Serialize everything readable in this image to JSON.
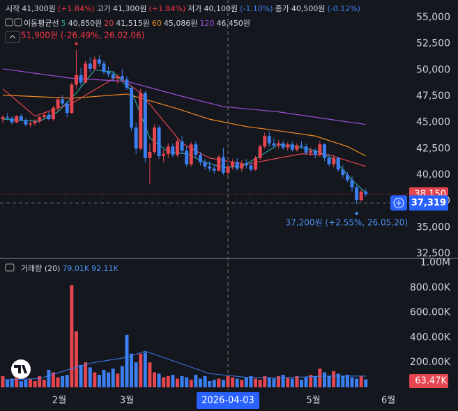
{
  "header": {
    "items": [
      {
        "label": "시작",
        "value": "41,300원",
        "change": "(+1.84%)",
        "color": "#f23645"
      },
      {
        "label": "고가",
        "value": "41,300원",
        "change": "(+1.84%)",
        "color": "#f23645"
      },
      {
        "label": "저가",
        "value": "40,100원",
        "change": "(-1.10%)",
        "color": "#3b82f0"
      },
      {
        "label": "종가",
        "value": "40,500원",
        "change": "(-0.12%)",
        "color": "#3b82f0"
      }
    ],
    "ma_title": "이동평균선",
    "volume_title": "거래량 (20)",
    "volume_values": [
      "79.01K",
      "92.11K"
    ]
  },
  "chart_data": {
    "type": "candlestick",
    "up_color": "#e5454f",
    "down_color": "#3b7ff0",
    "xlim": [
      -0.6,
      89.5
    ],
    "xticks": [
      {
        "value": 12.3,
        "label": "2월"
      },
      {
        "value": 27,
        "label": "3월"
      },
      {
        "value": 67.6,
        "label": "5월"
      },
      {
        "value": 83.9,
        "label": "6월"
      }
    ],
    "crosshair_x": {
      "value": 49,
      "label": "2026-04-03"
    },
    "ylim": [
      32100,
      56660
    ],
    "yticks": [
      {
        "value": 32500,
        "label": "32,500"
      },
      {
        "value": 35000,
        "label": "35,000"
      },
      {
        "value": 37500,
        "label": "37,500"
      },
      {
        "value": 40000,
        "label": "40,000"
      },
      {
        "value": 42500,
        "label": "42,500"
      },
      {
        "value": 45000,
        "label": "45,000"
      },
      {
        "value": 47500,
        "label": "47,500"
      },
      {
        "value": 50000,
        "label": "50,000"
      },
      {
        "value": 52500,
        "label": "52,500"
      },
      {
        "value": 55000,
        "label": "55,000"
      }
    ],
    "volume_ylim": [
      0,
      1028000
    ],
    "volume_yticks": [
      {
        "value": 200000,
        "label": "200.00K"
      },
      {
        "value": 400000,
        "label": "400.00K"
      },
      {
        "value": 600000,
        "label": "600.00K"
      },
      {
        "value": 800000,
        "label": "800.00K"
      },
      {
        "value": 1000000,
        "label": "1.00M"
      }
    ],
    "last_price": {
      "value": 38150,
      "label": "38,150"
    },
    "crosshair_price": {
      "value": 37319,
      "label": "37,319"
    },
    "last_volume": {
      "value": 63470,
      "label": "63.47K"
    },
    "annotations": [
      {
        "text": "51,900원 (-26.49%, 26.02.06)",
        "x": 16,
        "value": 51900,
        "color": "#f23645"
      },
      {
        "text": "37,200원 (+2.55%, 26.05.20)",
        "x": 77,
        "value": 37200,
        "color": "#4a90f0"
      }
    ],
    "candles": [
      {
        "o": 45300,
        "h": 45700,
        "l": 44900,
        "c": 45500,
        "v": 90000
      },
      {
        "o": 45500,
        "h": 45900,
        "l": 45200,
        "c": 45400,
        "v": 60000
      },
      {
        "o": 45400,
        "h": 45600,
        "l": 44800,
        "c": 45000,
        "v": 70000
      },
      {
        "o": 45000,
        "h": 45700,
        "l": 44900,
        "c": 45600,
        "v": 80000
      },
      {
        "o": 45600,
        "h": 45800,
        "l": 45100,
        "c": 45200,
        "v": 50000
      },
      {
        "o": 45200,
        "h": 45400,
        "l": 44600,
        "c": 44800,
        "v": 60000
      },
      {
        "o": 44800,
        "h": 45100,
        "l": 44500,
        "c": 44900,
        "v": 70000
      },
      {
        "o": 44900,
        "h": 45300,
        "l": 44700,
        "c": 45100,
        "v": 50000
      },
      {
        "o": 45100,
        "h": 45600,
        "l": 44900,
        "c": 45500,
        "v": 90000
      },
      {
        "o": 45500,
        "h": 46000,
        "l": 45300,
        "c": 45700,
        "v": 60000
      },
      {
        "o": 45700,
        "h": 46000,
        "l": 45200,
        "c": 45300,
        "v": 140000
      },
      {
        "o": 45300,
        "h": 46600,
        "l": 45100,
        "c": 46400,
        "v": 120000
      },
      {
        "o": 46400,
        "h": 47400,
        "l": 46000,
        "c": 47200,
        "v": 80000
      },
      {
        "o": 47200,
        "h": 47600,
        "l": 46500,
        "c": 46800,
        "v": 90000
      },
      {
        "o": 46800,
        "h": 47000,
        "l": 45500,
        "c": 45900,
        "v": 100000
      },
      {
        "o": 45900,
        "h": 48800,
        "l": 45800,
        "c": 48600,
        "v": 820000
      },
      {
        "o": 48600,
        "h": 51900,
        "l": 48200,
        "c": 49500,
        "v": 450000
      },
      {
        "o": 49500,
        "h": 50200,
        "l": 48500,
        "c": 48800,
        "v": 180000
      },
      {
        "o": 48800,
        "h": 50900,
        "l": 48700,
        "c": 50600,
        "v": 200000
      },
      {
        "o": 50600,
        "h": 51200,
        "l": 49800,
        "c": 50100,
        "v": 160000
      },
      {
        "o": 50100,
        "h": 51300,
        "l": 49900,
        "c": 51000,
        "v": 120000
      },
      {
        "o": 51000,
        "h": 51400,
        "l": 50300,
        "c": 50600,
        "v": 100000
      },
      {
        "o": 50600,
        "h": 50900,
        "l": 49600,
        "c": 49800,
        "v": 140000
      },
      {
        "o": 49800,
        "h": 50300,
        "l": 49300,
        "c": 49600,
        "v": 120000
      },
      {
        "o": 49600,
        "h": 49900,
        "l": 48900,
        "c": 49200,
        "v": 150000
      },
      {
        "o": 49200,
        "h": 49600,
        "l": 48700,
        "c": 49400,
        "v": 110000
      },
      {
        "o": 49400,
        "h": 50100,
        "l": 49000,
        "c": 49100,
        "v": 170000
      },
      {
        "o": 49100,
        "h": 49400,
        "l": 48100,
        "c": 48300,
        "v": 420000
      },
      {
        "o": 48300,
        "h": 48500,
        "l": 44200,
        "c": 44500,
        "v": 270000
      },
      {
        "o": 44500,
        "h": 45000,
        "l": 42000,
        "c": 42500,
        "v": 200000
      },
      {
        "o": 42500,
        "h": 48200,
        "l": 42300,
        "c": 47800,
        "v": 270000
      },
      {
        "o": 47800,
        "h": 48000,
        "l": 41200,
        "c": 41600,
        "v": 280000
      },
      {
        "o": 41600,
        "h": 43000,
        "l": 39100,
        "c": 42200,
        "v": 200000
      },
      {
        "o": 42200,
        "h": 44800,
        "l": 42000,
        "c": 44500,
        "v": 120000
      },
      {
        "o": 44500,
        "h": 44700,
        "l": 41500,
        "c": 41800,
        "v": 110000
      },
      {
        "o": 41800,
        "h": 42400,
        "l": 41200,
        "c": 42000,
        "v": 80000
      },
      {
        "o": 42000,
        "h": 43000,
        "l": 41600,
        "c": 42700,
        "v": 90000
      },
      {
        "o": 42700,
        "h": 43000,
        "l": 41700,
        "c": 41900,
        "v": 100000
      },
      {
        "o": 41900,
        "h": 43400,
        "l": 41700,
        "c": 43200,
        "v": 70000
      },
      {
        "o": 43200,
        "h": 43700,
        "l": 42000,
        "c": 42300,
        "v": 90000
      },
      {
        "o": 42300,
        "h": 42700,
        "l": 40800,
        "c": 41000,
        "v": 80000
      },
      {
        "o": 41000,
        "h": 43100,
        "l": 40800,
        "c": 42900,
        "v": 60000
      },
      {
        "o": 42900,
        "h": 43200,
        "l": 41600,
        "c": 41900,
        "v": 100000
      },
      {
        "o": 41900,
        "h": 42200,
        "l": 40900,
        "c": 41200,
        "v": 70000
      },
      {
        "o": 41200,
        "h": 41500,
        "l": 40500,
        "c": 40800,
        "v": 90000
      },
      {
        "o": 40800,
        "h": 41300,
        "l": 40300,
        "c": 40600,
        "v": 50000
      },
      {
        "o": 40600,
        "h": 41000,
        "l": 40100,
        "c": 40400,
        "v": 60000
      },
      {
        "o": 40400,
        "h": 41900,
        "l": 40300,
        "c": 41700,
        "v": 70000
      },
      {
        "o": 41700,
        "h": 42600,
        "l": 40000,
        "c": 40200,
        "v": 60000
      },
      {
        "o": 40200,
        "h": 41000,
        "l": 39900,
        "c": 40800,
        "v": 90000
      },
      {
        "o": 40800,
        "h": 41500,
        "l": 40500,
        "c": 41200,
        "v": 80000
      },
      {
        "o": 41200,
        "h": 41600,
        "l": 40400,
        "c": 40600,
        "v": 70000
      },
      {
        "o": 40600,
        "h": 41400,
        "l": 40300,
        "c": 41100,
        "v": 60000
      },
      {
        "o": 41100,
        "h": 41500,
        "l": 40600,
        "c": 40900,
        "v": 80000
      },
      {
        "o": 40900,
        "h": 41200,
        "l": 40300,
        "c": 40500,
        "v": 90000
      },
      {
        "o": 40500,
        "h": 41800,
        "l": 40400,
        "c": 41600,
        "v": 70000
      },
      {
        "o": 41600,
        "h": 42900,
        "l": 41400,
        "c": 42700,
        "v": 60000
      },
      {
        "o": 42700,
        "h": 44000,
        "l": 42500,
        "c": 43700,
        "v": 90000
      },
      {
        "o": 43700,
        "h": 44100,
        "l": 42700,
        "c": 43000,
        "v": 80000
      },
      {
        "o": 43000,
        "h": 43500,
        "l": 42600,
        "c": 42800,
        "v": 70000
      },
      {
        "o": 42800,
        "h": 43300,
        "l": 42500,
        "c": 43000,
        "v": 90000
      },
      {
        "o": 43000,
        "h": 43200,
        "l": 42400,
        "c": 42600,
        "v": 100000
      },
      {
        "o": 42600,
        "h": 43100,
        "l": 42300,
        "c": 42900,
        "v": 80000
      },
      {
        "o": 42900,
        "h": 43200,
        "l": 42200,
        "c": 42400,
        "v": 70000
      },
      {
        "o": 42400,
        "h": 43000,
        "l": 42200,
        "c": 42800,
        "v": 90000
      },
      {
        "o": 42800,
        "h": 43200,
        "l": 42500,
        "c": 42700,
        "v": 60000
      },
      {
        "o": 42700,
        "h": 43000,
        "l": 41900,
        "c": 42100,
        "v": 80000
      },
      {
        "o": 42100,
        "h": 42600,
        "l": 41800,
        "c": 42300,
        "v": 100000
      },
      {
        "o": 42300,
        "h": 42500,
        "l": 41600,
        "c": 41900,
        "v": 90000
      },
      {
        "o": 41900,
        "h": 43200,
        "l": 41700,
        "c": 42900,
        "v": 150000
      },
      {
        "o": 42900,
        "h": 43000,
        "l": 41300,
        "c": 41600,
        "v": 120000
      },
      {
        "o": 41600,
        "h": 42000,
        "l": 40800,
        "c": 41000,
        "v": 90000
      },
      {
        "o": 41000,
        "h": 41900,
        "l": 40700,
        "c": 41600,
        "v": 130000
      },
      {
        "o": 41600,
        "h": 41700,
        "l": 40300,
        "c": 40500,
        "v": 110000
      },
      {
        "o": 40500,
        "h": 40900,
        "l": 39700,
        "c": 40000,
        "v": 90000
      },
      {
        "o": 40000,
        "h": 40300,
        "l": 39300,
        "c": 39500,
        "v": 100000
      },
      {
        "o": 39500,
        "h": 39900,
        "l": 38400,
        "c": 38800,
        "v": 80000
      },
      {
        "o": 38800,
        "h": 39000,
        "l": 37200,
        "c": 37600,
        "v": 70000
      },
      {
        "o": 37600,
        "h": 38600,
        "l": 37400,
        "c": 38400,
        "v": 90000
      },
      {
        "o": 38400,
        "h": 38700,
        "l": 37900,
        "c": 38150,
        "v": 63470
      }
    ],
    "moving_averages": [
      {
        "name": "5",
        "label": "40,850원",
        "color": "#26a69a",
        "x": [
          0,
          4,
          8,
          12,
          16,
          20,
          24,
          28,
          32,
          36,
          40,
          44,
          48,
          52,
          56,
          60,
          64,
          68,
          72,
          76,
          79
        ],
        "values": [
          45300,
          45200,
          45100,
          46000,
          47800,
          50000,
          49800,
          48000,
          43500,
          42200,
          42000,
          41200,
          40700,
          40800,
          41800,
          42900,
          42700,
          42300,
          41500,
          39500,
          38300
        ]
      },
      {
        "name": "20",
        "label": "41,515원",
        "color": "#e5454f",
        "x": [
          0,
          7,
          15,
          25,
          30,
          39,
          45,
          53,
          60,
          65,
          71,
          79
        ],
        "values": [
          48200,
          45600,
          46800,
          49400,
          47800,
          43000,
          41600,
          41000,
          41600,
          42000,
          41900,
          40800
        ]
      },
      {
        "name": "60",
        "label": "45,086원",
        "color": "#f08a24",
        "x": [
          0,
          15,
          27,
          38,
          45,
          53,
          60,
          68,
          75,
          79
        ],
        "values": [
          47600,
          47300,
          47700,
          46300,
          45300,
          44600,
          44200,
          43700,
          42700,
          41800
        ]
      },
      {
        "name": "120",
        "label": "46,450원",
        "color": "#9c4fd6",
        "x": [
          0,
          15,
          27,
          38,
          48,
          60,
          71,
          79
        ],
        "values": [
          50100,
          49200,
          48900,
          47600,
          46500,
          46000,
          45300,
          44800
        ]
      }
    ],
    "volume_ma": {
      "color": "#3b7ff0",
      "x": [
        0,
        8,
        15,
        20,
        27,
        31,
        38,
        45,
        53,
        60,
        70,
        79
      ],
      "values": [
        60000,
        70000,
        150000,
        200000,
        240000,
        290000,
        200000,
        110000,
        80000,
        75000,
        90000,
        90000
      ]
    }
  }
}
